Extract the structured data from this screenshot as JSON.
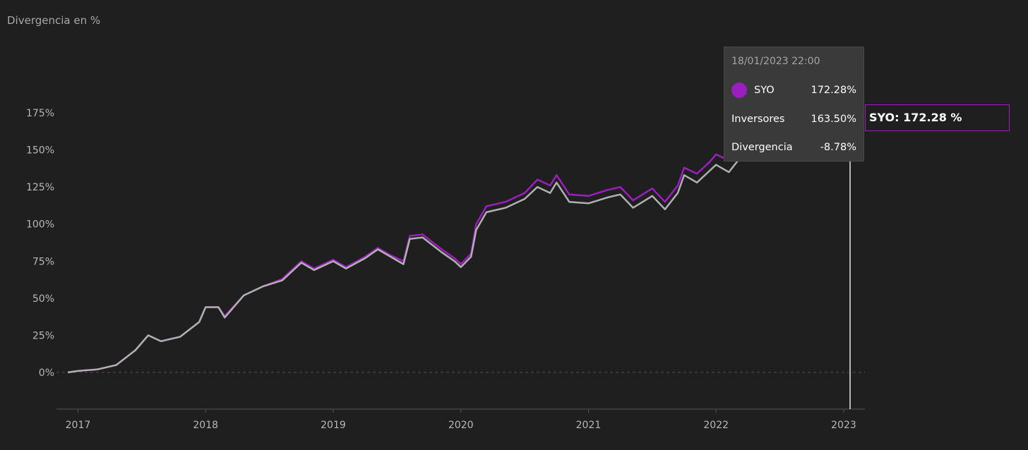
{
  "chart_data": {
    "type": "line",
    "title": "Divergencia en %",
    "xlabel": "",
    "ylabel": "",
    "x_ticks": [
      "2017",
      "2018",
      "2019",
      "2020",
      "2021",
      "2022",
      "2023"
    ],
    "y_ticks": [
      "0%",
      "25%",
      "50%",
      "75%",
      "100%",
      "125%",
      "150%",
      "175%"
    ],
    "ylim": [
      -25,
      200
    ],
    "xlim": [
      2016.9,
      2023.13
    ],
    "grid": "dashed zero line only",
    "series": [
      {
        "name": "SYO",
        "color": "#9b1fc0",
        "points": [
          [
            2016.92,
            0
          ],
          [
            2017.0,
            1
          ],
          [
            2017.15,
            2
          ],
          [
            2017.3,
            5
          ],
          [
            2017.45,
            15
          ],
          [
            2017.55,
            25
          ],
          [
            2017.65,
            21
          ],
          [
            2017.8,
            24
          ],
          [
            2017.95,
            34
          ],
          [
            2018.0,
            44
          ],
          [
            2018.1,
            44
          ],
          [
            2018.15,
            38
          ],
          [
            2018.3,
            52
          ],
          [
            2018.45,
            58
          ],
          [
            2018.6,
            63
          ],
          [
            2018.75,
            75
          ],
          [
            2018.85,
            70
          ],
          [
            2019.0,
            76
          ],
          [
            2019.1,
            71
          ],
          [
            2019.25,
            78
          ],
          [
            2019.35,
            84
          ],
          [
            2019.45,
            79
          ],
          [
            2019.55,
            75
          ],
          [
            2019.6,
            92
          ],
          [
            2019.7,
            93
          ],
          [
            2019.85,
            83
          ],
          [
            2019.95,
            77
          ],
          [
            2020.0,
            73
          ],
          [
            2020.08,
            80
          ],
          [
            2020.12,
            100
          ],
          [
            2020.2,
            112
          ],
          [
            2020.35,
            115
          ],
          [
            2020.5,
            121
          ],
          [
            2020.6,
            130
          ],
          [
            2020.7,
            126
          ],
          [
            2020.75,
            133
          ],
          [
            2020.85,
            120
          ],
          [
            2021.0,
            119
          ],
          [
            2021.15,
            123
          ],
          [
            2021.25,
            125
          ],
          [
            2021.35,
            116
          ],
          [
            2021.5,
            124
          ],
          [
            2021.6,
            115
          ],
          [
            2021.7,
            126
          ],
          [
            2021.75,
            138
          ],
          [
            2021.85,
            134
          ],
          [
            2021.95,
            142
          ],
          [
            2022.0,
            147
          ],
          [
            2022.1,
            143
          ],
          [
            2022.2,
            155
          ],
          [
            2022.35,
            160
          ],
          [
            2022.5,
            165
          ],
          [
            2022.65,
            168
          ],
          [
            2022.8,
            170
          ],
          [
            2022.95,
            171
          ],
          [
            2023.05,
            172.28
          ]
        ]
      },
      {
        "name": "Inversores",
        "color": "#b0b0b0",
        "points": [
          [
            2016.92,
            0
          ],
          [
            2017.0,
            1
          ],
          [
            2017.15,
            2
          ],
          [
            2017.3,
            5
          ],
          [
            2017.45,
            15
          ],
          [
            2017.55,
            25
          ],
          [
            2017.65,
            21
          ],
          [
            2017.8,
            24
          ],
          [
            2017.95,
            34
          ],
          [
            2018.0,
            44
          ],
          [
            2018.1,
            44
          ],
          [
            2018.15,
            37
          ],
          [
            2018.3,
            52
          ],
          [
            2018.45,
            58
          ],
          [
            2018.6,
            62
          ],
          [
            2018.75,
            74
          ],
          [
            2018.85,
            69
          ],
          [
            2019.0,
            75
          ],
          [
            2019.1,
            70
          ],
          [
            2019.25,
            77
          ],
          [
            2019.35,
            83
          ],
          [
            2019.45,
            78
          ],
          [
            2019.55,
            73
          ],
          [
            2019.6,
            90
          ],
          [
            2019.7,
            91
          ],
          [
            2019.85,
            81
          ],
          [
            2019.95,
            75
          ],
          [
            2020.0,
            71
          ],
          [
            2020.08,
            78
          ],
          [
            2020.12,
            96
          ],
          [
            2020.2,
            108
          ],
          [
            2020.35,
            111
          ],
          [
            2020.5,
            117
          ],
          [
            2020.6,
            125
          ],
          [
            2020.7,
            121
          ],
          [
            2020.75,
            128
          ],
          [
            2020.85,
            115
          ],
          [
            2021.0,
            114
          ],
          [
            2021.15,
            118
          ],
          [
            2021.25,
            120
          ],
          [
            2021.35,
            111
          ],
          [
            2021.5,
            119
          ],
          [
            2021.6,
            110
          ],
          [
            2021.7,
            121
          ],
          [
            2021.75,
            133
          ],
          [
            2021.85,
            128
          ],
          [
            2021.95,
            136
          ],
          [
            2022.0,
            140
          ],
          [
            2022.1,
            135
          ],
          [
            2022.2,
            146
          ],
          [
            2022.35,
            152
          ],
          [
            2022.5,
            156
          ],
          [
            2022.65,
            159
          ],
          [
            2022.8,
            161
          ],
          [
            2022.95,
            162.5
          ],
          [
            2023.05,
            163.5
          ]
        ]
      }
    ],
    "cursor_x": 2023.05
  },
  "tooltip": {
    "date": "18/01/2023 22:00",
    "rows": [
      {
        "label": "SYO",
        "value": "172.28%"
      },
      {
        "label": "Inversores",
        "value": "163.50%"
      },
      {
        "label": "Divergencia",
        "value": "-8.78%"
      }
    ]
  },
  "end_label": "SYO: 172.28 %"
}
